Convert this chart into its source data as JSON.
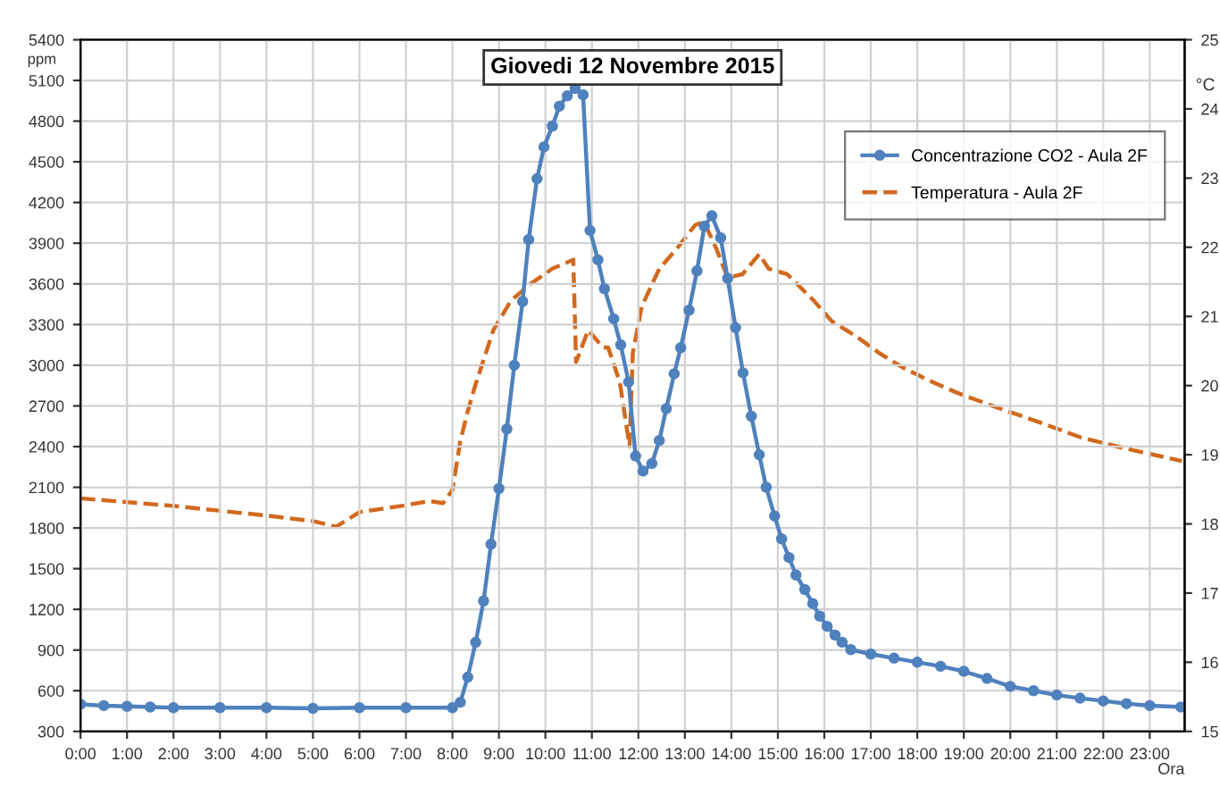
{
  "chart_data": {
    "type": "line",
    "title": "Giovedi 12 Novembre 2015",
    "xlabel": "Ora",
    "ylabel": "ppm",
    "y2label": "°C",
    "xlim": [
      0,
      23.75
    ],
    "xticks": [
      {
        "value": 0,
        "label": "0:00"
      },
      {
        "value": 1,
        "label": "1:00"
      },
      {
        "value": 2,
        "label": "2:00"
      },
      {
        "value": 3,
        "label": "3:00"
      },
      {
        "value": 4,
        "label": "4:00"
      },
      {
        "value": 5,
        "label": "5:00"
      },
      {
        "value": 6,
        "label": "6:00"
      },
      {
        "value": 7,
        "label": "7:00"
      },
      {
        "value": 8,
        "label": "8:00"
      },
      {
        "value": 9,
        "label": "9:00"
      },
      {
        "value": 10,
        "label": "10:00"
      },
      {
        "value": 11,
        "label": "11:00"
      },
      {
        "value": 12,
        "label": "12:00"
      },
      {
        "value": 13,
        "label": "13:00"
      },
      {
        "value": 14,
        "label": "14:00"
      },
      {
        "value": 15,
        "label": "15:00"
      },
      {
        "value": 16,
        "label": "16:00"
      },
      {
        "value": 17,
        "label": "17:00"
      },
      {
        "value": 18,
        "label": "18:00"
      },
      {
        "value": 19,
        "label": "19:00"
      },
      {
        "value": 20,
        "label": "20:00"
      },
      {
        "value": 21,
        "label": "21:00"
      },
      {
        "value": 22,
        "label": "22:00"
      },
      {
        "value": 23,
        "label": "23:00"
      }
    ],
    "ylim": [
      300,
      5400
    ],
    "yticks": [
      300,
      600,
      900,
      1200,
      1500,
      1800,
      2100,
      2400,
      2700,
      3000,
      3300,
      3600,
      3900,
      4200,
      4500,
      4800,
      5100,
      5400
    ],
    "y2lim": [
      15,
      25
    ],
    "y2ticks": [
      15,
      16,
      17,
      18,
      19,
      20,
      21,
      22,
      23,
      24,
      25
    ],
    "grid": true,
    "legend": "top right",
    "series": [
      {
        "name": "Concentrazione CO2 - Aula 2F",
        "color": "#4f81bd",
        "marker": "circle",
        "line_style": "solid",
        "x": [
          0,
          0.5,
          1,
          1.5,
          2,
          3,
          4,
          5,
          6,
          7,
          8,
          8.17,
          8.33,
          8.5,
          8.67,
          8.83,
          9.0,
          9.17,
          9.33,
          9.51,
          9.64,
          9.82,
          9.97,
          10.15,
          10.3,
          10.47,
          10.64,
          10.81,
          10.96,
          11.13,
          11.27,
          11.47,
          11.62,
          11.79,
          11.94,
          12.1,
          12.29,
          12.45,
          12.6,
          12.77,
          12.91,
          13.09,
          13.26,
          13.42,
          13.58,
          13.77,
          13.92,
          14.09,
          14.25,
          14.43,
          14.6,
          14.75,
          14.93,
          15.08,
          15.24,
          15.39,
          15.58,
          15.75,
          15.9,
          16.06,
          16.23,
          16.38,
          16.57,
          17,
          17.5,
          18,
          18.5,
          19,
          19.5,
          20,
          20.5,
          21,
          21.5,
          22,
          22.5,
          23,
          23.67
        ],
        "values": [
          500,
          490,
          485,
          480,
          475,
          475,
          475,
          470,
          475,
          475,
          475,
          515,
          700,
          957,
          1262,
          1680,
          2090,
          2530,
          3000,
          3470,
          3927,
          4375,
          4610,
          4763,
          4910,
          4986,
          5041,
          4994,
          3993,
          3777,
          3564,
          3342,
          3150,
          2876,
          2330,
          2219,
          2275,
          2445,
          2680,
          2937,
          3129,
          3406,
          3696,
          4025,
          4102,
          3940,
          3641,
          3277,
          2944,
          2624,
          2340,
          2100,
          1888,
          1720,
          1582,
          1453,
          1346,
          1243,
          1150,
          1075,
          1010,
          958,
          903,
          870,
          840,
          810,
          780,
          743,
          690,
          632,
          600,
          568,
          545,
          525,
          505,
          490,
          480
        ]
      },
      {
        "name": "Temperatura - Aula 2F",
        "color": "#d2691e",
        "axis": "y2",
        "marker": "none",
        "line_style": "dashed",
        "x": [
          0,
          2,
          4,
          5,
          5.5,
          6,
          7,
          7.5,
          7.8,
          8.0,
          8.17,
          8.33,
          8.49,
          8.88,
          9.26,
          9.7,
          10.15,
          10.6,
          10.66,
          10.92,
          11.24,
          11.35,
          11.6,
          11.81,
          11.88,
          12.07,
          12.45,
          12.84,
          13.22,
          13.41,
          13.67,
          13.92,
          14.24,
          14.6,
          14.8,
          15.2,
          15.77,
          16.16,
          16.67,
          17.18,
          17.69,
          18.2,
          18.84,
          19.6,
          20.5,
          21.52,
          22.54,
          23.69
        ],
        "values": [
          18.37,
          18.26,
          18.12,
          18.04,
          17.96,
          18.17,
          18.27,
          18.33,
          18.3,
          18.49,
          19.2,
          19.63,
          20.0,
          20.8,
          21.23,
          21.48,
          21.69,
          21.82,
          20.34,
          20.8,
          20.55,
          20.55,
          20.05,
          19.12,
          20.47,
          21.14,
          21.69,
          21.99,
          22.32,
          22.37,
          21.99,
          21.56,
          21.61,
          21.9,
          21.69,
          21.61,
          21.23,
          20.93,
          20.72,
          20.47,
          20.26,
          20.09,
          19.9,
          19.71,
          19.5,
          19.25,
          19.08,
          18.91
        ]
      }
    ]
  }
}
